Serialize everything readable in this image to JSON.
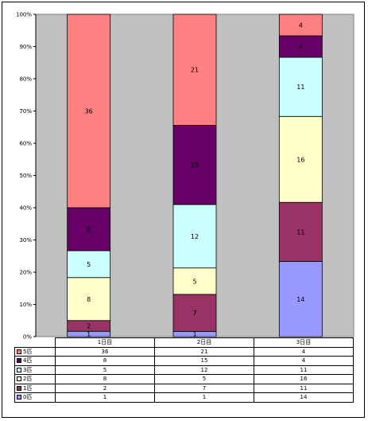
{
  "chart_data": {
    "type": "bar",
    "stacked": true,
    "normalized": true,
    "categories": [
      "1日目",
      "2日目",
      "3日目"
    ],
    "series": [
      {
        "name": "0匹",
        "values": [
          1,
          1,
          14
        ],
        "color": "#9999ff"
      },
      {
        "name": "1匹",
        "values": [
          2,
          7,
          11
        ],
        "color": "#993366"
      },
      {
        "name": "2匹",
        "values": [
          8,
          5,
          16
        ],
        "color": "#ffffcc"
      },
      {
        "name": "3匹",
        "values": [
          5,
          12,
          11
        ],
        "color": "#ccffff"
      },
      {
        "name": "4匹",
        "values": [
          8,
          15,
          4
        ],
        "color": "#660066"
      },
      {
        "name": "5匹",
        "values": [
          36,
          21,
          4
        ],
        "color": "#ff8080"
      }
    ],
    "ylim": [
      0,
      100
    ],
    "yticks": [
      "0%",
      "10%",
      "20%",
      "30%",
      "40%",
      "50%",
      "60%",
      "70%",
      "80%",
      "90%",
      "100%"
    ],
    "plot_background": "#c0c0c0",
    "grid": false,
    "legend": "data-table"
  }
}
